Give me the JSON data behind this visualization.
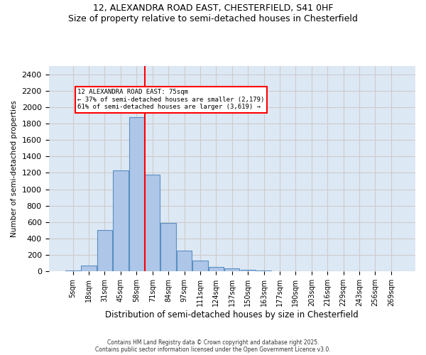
{
  "title_line1": "12, ALEXANDRA ROAD EAST, CHESTERFIELD, S41 0HF",
  "title_line2": "Size of property relative to semi-detached houses in Chesterfield",
  "xlabel": "Distribution of semi-detached houses by size in Chesterfield",
  "ylabel": "Number of semi-detached properties",
  "footnote": "Contains HM Land Registry data © Crown copyright and database right 2025.\nContains public sector information licensed under the Open Government Licence v3.0.",
  "bin_labels": [
    "5sqm",
    "18sqm",
    "31sqm",
    "45sqm",
    "58sqm",
    "71sqm",
    "84sqm",
    "97sqm",
    "111sqm",
    "124sqm",
    "137sqm",
    "150sqm",
    "163sqm",
    "177sqm",
    "190sqm",
    "203sqm",
    "216sqm",
    "229sqm",
    "243sqm",
    "256sqm",
    "269sqm"
  ],
  "bar_values": [
    10,
    70,
    500,
    1230,
    1880,
    1180,
    590,
    250,
    130,
    55,
    40,
    20,
    10,
    0,
    0,
    0,
    0,
    0,
    0,
    0,
    0
  ],
  "bar_color": "#aec6e8",
  "bar_edge_color": "#5a8fc2",
  "highlight_line_color": "red",
  "annotation_text_line1": "12 ALEXANDRA ROAD EAST: 75sqm",
  "annotation_text_line2": "← 37% of semi-detached houses are smaller (2,179)",
  "annotation_text_line3": "61% of semi-detached houses are larger (3,619) →",
  "ylim": [
    0,
    2500
  ],
  "yticks": [
    0,
    200,
    400,
    600,
    800,
    1000,
    1200,
    1400,
    1600,
    1800,
    2000,
    2200,
    2400
  ],
  "grid_color": "#cccccc",
  "bg_color": "#dde8f5"
}
